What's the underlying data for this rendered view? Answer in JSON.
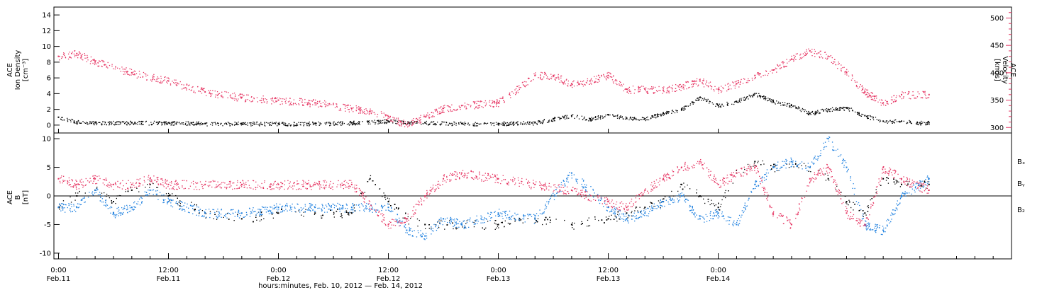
{
  "chart_data": [
    {
      "type": "scatter",
      "panel": "top",
      "ylabel_lines": [
        "ACE",
        "Ion Density",
        "[cm⁻³]"
      ],
      "ylim": [
        -1,
        15
      ],
      "yticks": [
        0,
        2,
        4,
        6,
        8,
        10,
        12,
        14
      ],
      "y2label_lines": [
        "ACE",
        "Velocity",
        "[km/s]"
      ],
      "y2lim": [
        290,
        520
      ],
      "y2ticks": [
        300,
        350,
        400,
        450,
        500
      ],
      "colors": {
        "density": "#000000",
        "velocity": "#e63462"
      },
      "series": [
        {
          "axis": "left",
          "color": "#000000",
          "x": [
            0,
            2,
            4,
            8,
            12,
            16,
            20,
            24,
            28,
            32,
            36,
            40,
            44,
            48,
            52,
            54,
            56,
            58,
            60,
            62,
            64,
            66,
            68,
            70,
            72,
            74,
            76,
            78,
            80,
            82,
            84,
            86,
            88,
            90,
            92,
            94,
            95
          ],
          "values": [
            1.0,
            0.4,
            0.3,
            0.3,
            0.3,
            0.2,
            0.2,
            0.2,
            0.2,
            0.3,
            0.5,
            0.3,
            0.2,
            0.2,
            0.3,
            0.8,
            1.2,
            0.8,
            1.3,
            0.9,
            0.8,
            1.5,
            2.0,
            3.5,
            2.5,
            3.0,
            4.0,
            3.0,
            2.5,
            1.5,
            2.0,
            2.2,
            1.2,
            0.5,
            0.5,
            0.3,
            0.3
          ]
        },
        {
          "axis": "right",
          "color": "#e63462",
          "x": [
            0,
            2,
            4,
            8,
            12,
            16,
            20,
            24,
            28,
            32,
            34,
            36,
            38,
            40,
            42,
            44,
            48,
            52,
            54,
            56,
            58,
            60,
            62,
            64,
            66,
            68,
            70,
            72,
            74,
            76,
            78,
            80,
            82,
            84,
            86,
            88,
            90,
            92,
            95
          ],
          "values": [
            430,
            435,
            420,
            400,
            385,
            365,
            355,
            350,
            345,
            335,
            330,
            320,
            305,
            320,
            335,
            340,
            345,
            395,
            395,
            380,
            385,
            395,
            370,
            370,
            368,
            375,
            385,
            370,
            380,
            395,
            405,
            425,
            440,
            430,
            400,
            365,
            345,
            360,
            360
          ]
        }
      ]
    },
    {
      "type": "scatter",
      "panel": "bottom",
      "ylabel_lines": [
        "ACE",
        "B",
        "[nT]"
      ],
      "ylim": [
        -11,
        11
      ],
      "yticks": [
        -10,
        -5,
        0,
        5,
        10
      ],
      "legend": [
        "Bₓ",
        "Bᵧ",
        "B₂"
      ],
      "series": [
        {
          "name": "Bx",
          "color": "#000000",
          "x": [
            0,
            2,
            4,
            6,
            8,
            10,
            12,
            16,
            20,
            24,
            28,
            32,
            34,
            36,
            38,
            40,
            44,
            48,
            52,
            56,
            60,
            62,
            64,
            66,
            68,
            70,
            72,
            74,
            76,
            78,
            80,
            82,
            84,
            86,
            88,
            90,
            92,
            95
          ],
          "values": [
            -2,
            0,
            1,
            -1,
            1,
            2,
            0,
            -3,
            -4,
            -3,
            -3,
            -3,
            3,
            -1,
            -4,
            -5,
            -5,
            -5,
            -4,
            -5,
            -4,
            -3,
            -2,
            -1,
            2,
            0,
            -2,
            4,
            6,
            5,
            6,
            5,
            3,
            -1,
            -3,
            3,
            2,
            2
          ]
        },
        {
          "name": "By",
          "color": "#1c7fdf",
          "x": [
            0,
            2,
            4,
            6,
            8,
            10,
            12,
            16,
            20,
            24,
            28,
            32,
            36,
            38,
            40,
            42,
            44,
            48,
            52,
            56,
            60,
            62,
            64,
            66,
            68,
            70,
            72,
            74,
            76,
            78,
            80,
            82,
            84,
            86,
            88,
            90,
            92,
            95
          ],
          "values": [
            -2,
            -2,
            1,
            -3,
            -2,
            1,
            -1,
            -3,
            -3,
            -2,
            -2,
            -2,
            -2,
            -6,
            -7,
            -4,
            -5,
            -3,
            -4,
            4,
            -2,
            -4,
            -3,
            -1,
            0,
            -4,
            -3,
            -5,
            2,
            5,
            6,
            5,
            10,
            5,
            -5,
            -6,
            0,
            3
          ]
        },
        {
          "name": "Bz",
          "color": "#e63462",
          "x": [
            0,
            2,
            4,
            6,
            8,
            10,
            12,
            16,
            20,
            24,
            28,
            32,
            36,
            38,
            40,
            42,
            44,
            48,
            52,
            56,
            60,
            62,
            64,
            66,
            68,
            70,
            72,
            74,
            76,
            78,
            80,
            82,
            84,
            86,
            88,
            90,
            92,
            95
          ],
          "values": [
            3,
            2,
            3,
            2,
            2,
            3,
            2,
            2,
            2,
            2,
            2,
            2,
            -5,
            -4,
            0,
            3,
            4,
            3,
            2,
            1,
            -1,
            -2,
            1,
            3,
            5,
            6,
            2,
            4,
            5,
            -3,
            -5,
            3,
            5,
            -3,
            -5,
            5,
            3,
            1
          ]
        }
      ]
    },
    {
      "type": "x-axis",
      "xlim": [
        -0.5,
        104
      ],
      "ticks": [
        {
          "x": 0,
          "line1": "0:00",
          "line2": "Feb.11"
        },
        {
          "x": 12,
          "line1": "12:00",
          "line2": "Feb.11"
        },
        {
          "x": 24,
          "line1": "0:00",
          "line2": "Feb.12"
        },
        {
          "x": 36,
          "line1": "12:00",
          "line2": "Feb.12"
        },
        {
          "x": 48,
          "line1": "0:00",
          "line2": "Feb.13"
        },
        {
          "x": 60,
          "line1": "12:00",
          "line2": "Feb.13"
        },
        {
          "x": 72,
          "line1": "0:00",
          "line2": "Feb.14"
        }
      ],
      "xlabel": "hours:minutes, Feb. 10, 2012 — Feb. 14, 2012"
    }
  ]
}
